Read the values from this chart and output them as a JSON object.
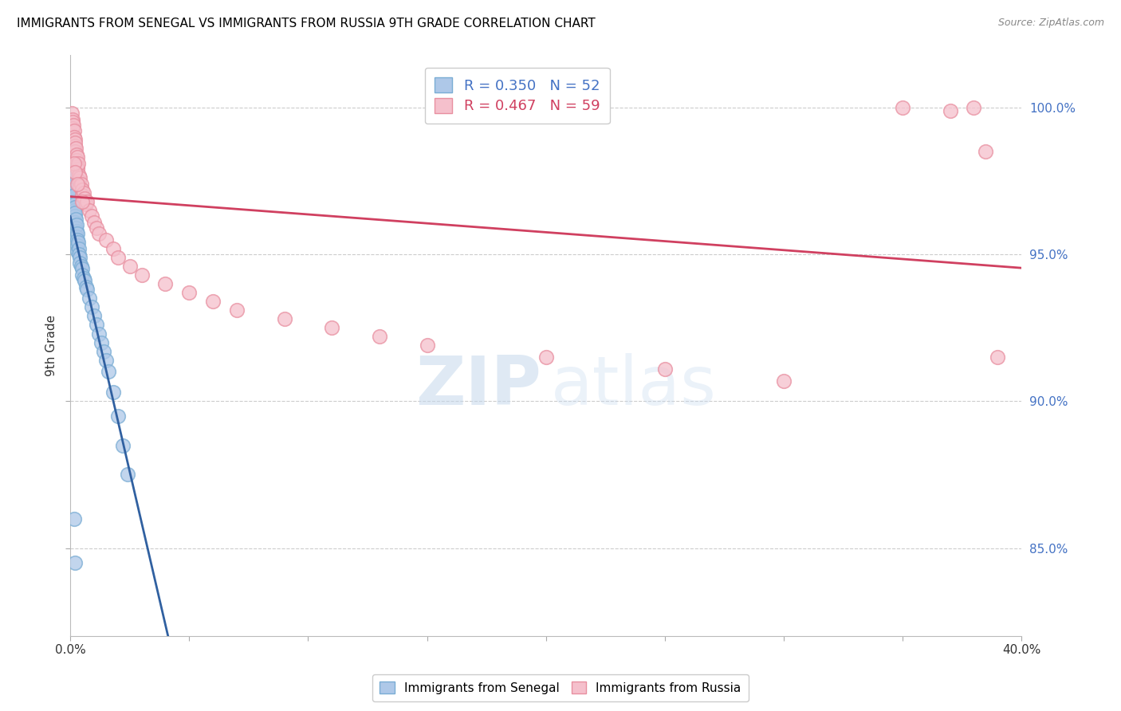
{
  "title": "IMMIGRANTS FROM SENEGAL VS IMMIGRANTS FROM RUSSIA 9TH GRADE CORRELATION CHART",
  "source": "Source: ZipAtlas.com",
  "ylabel": "9th Grade",
  "xmin": 0.0,
  "xmax": 40.0,
  "ymin": 82.0,
  "ymax": 101.8,
  "yticks": [
    85.0,
    90.0,
    95.0,
    100.0
  ],
  "ytick_labels": [
    "85.0%",
    "90.0%",
    "95.0%",
    "100.0%"
  ],
  "legend_blue_label": "R = 0.350   N = 52",
  "legend_pink_label": "R = 0.467   N = 59",
  "blue_face_color": "#aec8e8",
  "blue_edge_color": "#7aadd4",
  "pink_face_color": "#f5c0cc",
  "pink_edge_color": "#e88fa0",
  "blue_line_color": "#3060a0",
  "pink_line_color": "#d04060",
  "label_senegal": "Immigrants from Senegal",
  "label_russia": "Immigrants from Russia",
  "senegal_x": [
    0.05,
    0.05,
    0.08,
    0.08,
    0.1,
    0.1,
    0.1,
    0.12,
    0.12,
    0.15,
    0.15,
    0.15,
    0.18,
    0.18,
    0.2,
    0.2,
    0.22,
    0.22,
    0.25,
    0.25,
    0.25,
    0.28,
    0.3,
    0.3,
    0.3,
    0.32,
    0.35,
    0.35,
    0.4,
    0.4,
    0.45,
    0.5,
    0.5,
    0.55,
    0.6,
    0.65,
    0.7,
    0.8,
    0.9,
    1.0,
    1.1,
    1.2,
    1.3,
    1.4,
    1.5,
    1.6,
    1.8,
    2.0,
    2.2,
    2.4,
    0.15,
    0.2
  ],
  "senegal_y": [
    97.8,
    97.5,
    97.6,
    97.3,
    97.4,
    97.1,
    96.9,
    97.2,
    96.8,
    97.0,
    96.7,
    96.5,
    96.6,
    96.3,
    96.4,
    96.1,
    96.2,
    95.9,
    95.8,
    96.0,
    95.6,
    95.7,
    95.5,
    95.3,
    95.1,
    95.4,
    95.2,
    95.0,
    94.9,
    94.7,
    94.6,
    94.5,
    94.3,
    94.2,
    94.1,
    93.9,
    93.8,
    93.5,
    93.2,
    92.9,
    92.6,
    92.3,
    92.0,
    91.7,
    91.4,
    91.0,
    90.3,
    89.5,
    88.5,
    87.5,
    86.0,
    84.5
  ],
  "russia_x": [
    0.05,
    0.08,
    0.1,
    0.1,
    0.12,
    0.15,
    0.15,
    0.18,
    0.18,
    0.2,
    0.2,
    0.22,
    0.25,
    0.25,
    0.28,
    0.3,
    0.3,
    0.32,
    0.35,
    0.35,
    0.4,
    0.4,
    0.45,
    0.5,
    0.5,
    0.55,
    0.6,
    0.65,
    0.7,
    0.8,
    0.9,
    1.0,
    1.1,
    1.2,
    1.5,
    1.8,
    2.0,
    2.5,
    3.0,
    4.0,
    5.0,
    6.0,
    7.0,
    9.0,
    11.0,
    13.0,
    15.0,
    20.0,
    25.0,
    30.0,
    35.0,
    37.0,
    38.0,
    38.5,
    39.0,
    0.15,
    0.2,
    0.3,
    0.5
  ],
  "russia_y": [
    99.8,
    99.6,
    99.5,
    99.3,
    99.4,
    99.2,
    99.0,
    98.9,
    98.7,
    98.8,
    98.5,
    98.6,
    98.4,
    98.2,
    98.3,
    98.0,
    97.9,
    98.1,
    97.7,
    97.5,
    97.6,
    97.3,
    97.4,
    97.2,
    97.0,
    97.1,
    96.9,
    96.7,
    96.8,
    96.5,
    96.3,
    96.1,
    95.9,
    95.7,
    95.5,
    95.2,
    94.9,
    94.6,
    94.3,
    94.0,
    93.7,
    93.4,
    93.1,
    92.8,
    92.5,
    92.2,
    91.9,
    91.5,
    91.1,
    90.7,
    100.0,
    99.9,
    100.0,
    98.5,
    91.5,
    98.1,
    97.8,
    97.4,
    96.8
  ]
}
